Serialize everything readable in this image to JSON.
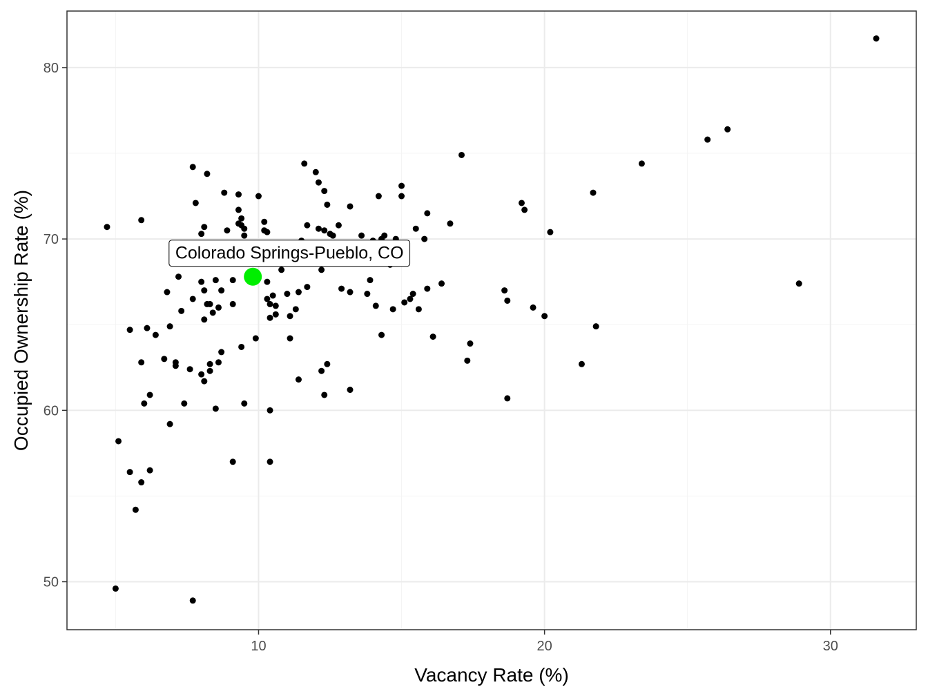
{
  "chart_data": {
    "type": "scatter",
    "title": "",
    "xlabel": "Vacancy Rate (%)",
    "ylabel": "Occupied Ownership Rate (%)",
    "xlim": [
      3.3,
      33.0
    ],
    "ylim": [
      47.2,
      83.3
    ],
    "x_ticks": [
      10,
      20,
      30
    ],
    "y_ticks": [
      50,
      60,
      70,
      80
    ],
    "x_minor_ticks": [
      5,
      15,
      25
    ],
    "y_minor_ticks": [
      55,
      65,
      75
    ],
    "grid": true,
    "legend": "none",
    "colors": {
      "point": "#000000",
      "highlight": "#00ee00",
      "grid_major": "#ebebeb",
      "grid_minor": "#f4f4f4",
      "panel_border": "#333333"
    },
    "highlight": {
      "label": "Colorado Springs-Pueblo, CO",
      "x": 9.8,
      "y": 67.8
    },
    "points": [
      [
        4.7,
        70.7
      ],
      [
        5.0,
        49.6
      ],
      [
        5.1,
        58.2
      ],
      [
        5.5,
        56.4
      ],
      [
        5.5,
        64.7
      ],
      [
        5.7,
        54.2
      ],
      [
        5.9,
        62.8
      ],
      [
        5.9,
        55.8
      ],
      [
        5.9,
        71.1
      ],
      [
        6.0,
        60.4
      ],
      [
        6.1,
        64.8
      ],
      [
        6.2,
        56.5
      ],
      [
        6.2,
        60.9
      ],
      [
        6.4,
        64.4
      ],
      [
        6.7,
        63.0
      ],
      [
        6.8,
        66.9
      ],
      [
        6.9,
        64.9
      ],
      [
        6.9,
        59.2
      ],
      [
        7.1,
        62.6
      ],
      [
        7.1,
        62.8
      ],
      [
        7.2,
        67.8
      ],
      [
        7.3,
        65.8
      ],
      [
        7.4,
        60.4
      ],
      [
        7.6,
        62.4
      ],
      [
        7.7,
        66.5
      ],
      [
        7.7,
        48.9
      ],
      [
        7.7,
        74.2
      ],
      [
        7.8,
        72.1
      ],
      [
        8.0,
        62.1
      ],
      [
        8.0,
        70.3
      ],
      [
        8.0,
        67.5
      ],
      [
        8.1,
        61.7
      ],
      [
        8.1,
        65.3
      ],
      [
        8.1,
        70.7
      ],
      [
        8.1,
        67.0
      ],
      [
        8.2,
        73.8
      ],
      [
        8.2,
        66.2
      ],
      [
        8.3,
        66.2
      ],
      [
        8.3,
        62.7
      ],
      [
        8.3,
        62.3
      ],
      [
        8.4,
        65.7
      ],
      [
        8.5,
        67.6
      ],
      [
        8.5,
        60.1
      ],
      [
        8.6,
        62.8
      ],
      [
        8.6,
        66.0
      ],
      [
        8.7,
        63.4
      ],
      [
        8.7,
        67.0
      ],
      [
        8.8,
        72.7
      ],
      [
        8.9,
        70.5
      ],
      [
        9.1,
        67.6
      ],
      [
        9.1,
        66.2
      ],
      [
        9.1,
        57.0
      ],
      [
        9.3,
        71.7
      ],
      [
        9.3,
        70.9
      ],
      [
        9.3,
        72.6
      ],
      [
        9.4,
        70.8
      ],
      [
        9.4,
        63.7
      ],
      [
        9.4,
        71.2
      ],
      [
        9.5,
        70.6
      ],
      [
        9.5,
        70.2
      ],
      [
        9.5,
        60.4
      ],
      [
        9.8,
        67.8
      ],
      [
        9.9,
        64.2
      ],
      [
        10.0,
        72.5
      ],
      [
        10.2,
        71.0
      ],
      [
        10.2,
        70.5
      ],
      [
        10.3,
        70.4
      ],
      [
        10.3,
        67.5
      ],
      [
        10.3,
        66.5
      ],
      [
        10.4,
        57.0
      ],
      [
        10.4,
        65.4
      ],
      [
        10.4,
        60.0
      ],
      [
        10.4,
        66.2
      ],
      [
        10.5,
        66.7
      ],
      [
        10.6,
        65.6
      ],
      [
        10.6,
        66.1
      ],
      [
        10.8,
        68.2
      ],
      [
        11.0,
        66.8
      ],
      [
        11.1,
        65.5
      ],
      [
        11.1,
        64.2
      ],
      [
        11.3,
        65.9
      ],
      [
        11.4,
        66.9
      ],
      [
        11.4,
        61.8
      ],
      [
        11.5,
        69.9
      ],
      [
        11.6,
        74.4
      ],
      [
        11.7,
        67.2
      ],
      [
        11.7,
        70.8
      ],
      [
        12.0,
        73.9
      ],
      [
        12.1,
        73.3
      ],
      [
        12.1,
        70.6
      ],
      [
        12.2,
        62.3
      ],
      [
        12.2,
        68.2
      ],
      [
        12.3,
        72.8
      ],
      [
        12.3,
        60.9
      ],
      [
        12.3,
        70.5
      ],
      [
        12.4,
        72.0
      ],
      [
        12.4,
        62.7
      ],
      [
        12.5,
        70.3
      ],
      [
        12.6,
        70.2
      ],
      [
        12.8,
        70.8
      ],
      [
        12.9,
        67.1
      ],
      [
        13.2,
        66.9
      ],
      [
        13.2,
        71.9
      ],
      [
        13.2,
        61.2
      ],
      [
        13.6,
        70.2
      ],
      [
        13.8,
        66.8
      ],
      [
        13.9,
        67.6
      ],
      [
        14.0,
        69.9
      ],
      [
        14.1,
        66.1
      ],
      [
        14.2,
        72.5
      ],
      [
        14.3,
        64.4
      ],
      [
        14.3,
        70.0
      ],
      [
        14.4,
        70.2
      ],
      [
        14.6,
        68.5
      ],
      [
        14.7,
        65.9
      ],
      [
        14.8,
        70.0
      ],
      [
        15.0,
        73.1
      ],
      [
        15.0,
        72.5
      ],
      [
        15.1,
        66.3
      ],
      [
        15.3,
        66.5
      ],
      [
        15.4,
        66.8
      ],
      [
        15.5,
        70.6
      ],
      [
        15.6,
        65.9
      ],
      [
        15.8,
        70.0
      ],
      [
        15.9,
        71.5
      ],
      [
        15.9,
        67.1
      ],
      [
        16.1,
        64.3
      ],
      [
        16.4,
        67.4
      ],
      [
        16.7,
        70.9
      ],
      [
        17.1,
        74.9
      ],
      [
        17.3,
        62.9
      ],
      [
        17.4,
        63.9
      ],
      [
        18.6,
        67.0
      ],
      [
        18.7,
        66.4
      ],
      [
        18.7,
        60.7
      ],
      [
        19.2,
        72.1
      ],
      [
        19.3,
        71.7
      ],
      [
        19.6,
        66.0
      ],
      [
        20.0,
        65.5
      ],
      [
        20.2,
        70.4
      ],
      [
        21.3,
        62.7
      ],
      [
        21.7,
        72.7
      ],
      [
        21.8,
        64.9
      ],
      [
        23.4,
        74.4
      ],
      [
        25.7,
        75.8
      ],
      [
        26.4,
        76.4
      ],
      [
        28.9,
        67.4
      ],
      [
        31.6,
        81.7
      ]
    ]
  }
}
